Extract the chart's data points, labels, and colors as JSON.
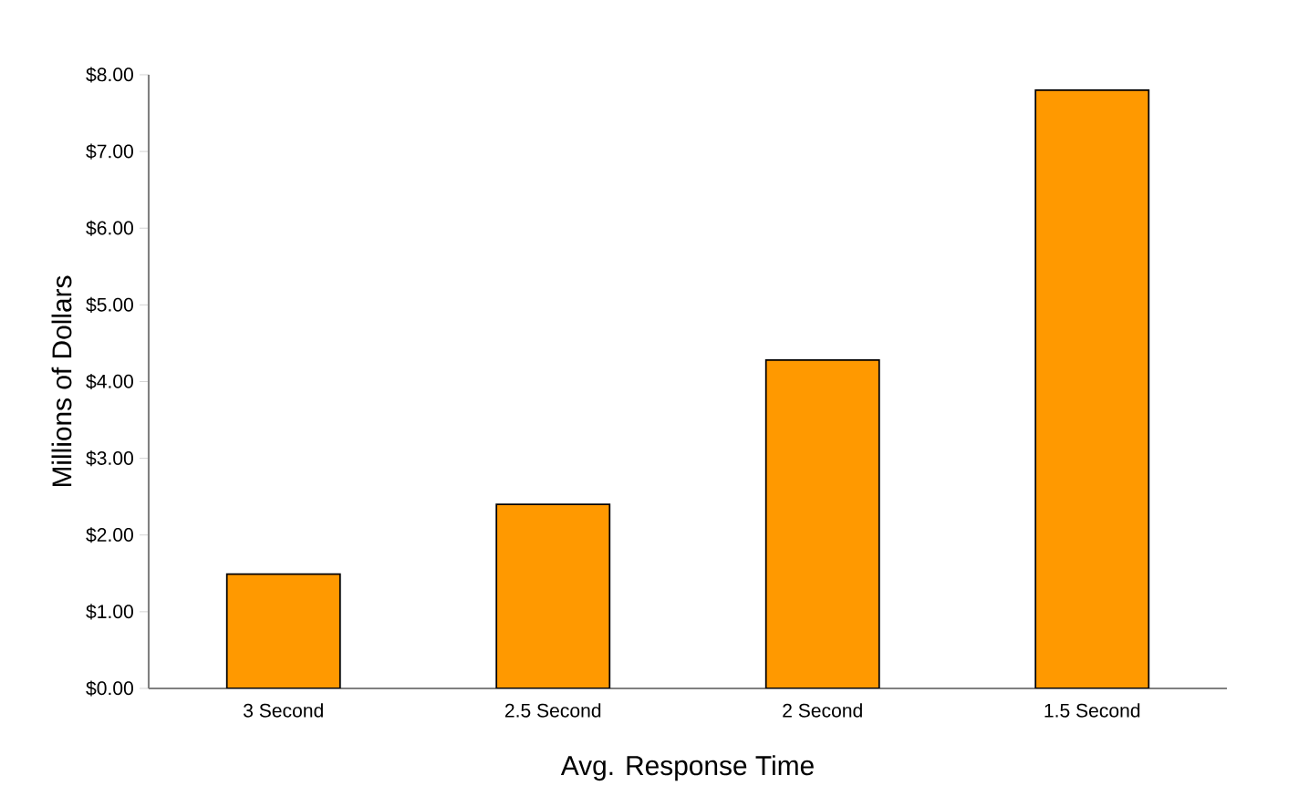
{
  "chart_data": {
    "type": "bar",
    "xlabel": "Avg. Response Time",
    "ylabel": "Millions of Dollars",
    "categories": [
      "3 Second",
      "2.5 Second",
      "2 Second",
      "1.5 Second"
    ],
    "values": [
      1.49,
      2.4,
      4.28,
      7.8
    ],
    "color": "#ff9900",
    "ylim": [
      0,
      8
    ],
    "yticks": [
      {
        "value": 0,
        "label": "$0.00"
      },
      {
        "value": 1,
        "label": "$1.00"
      },
      {
        "value": 2,
        "label": "$2.00"
      },
      {
        "value": 3,
        "label": "$3.00"
      },
      {
        "value": 4,
        "label": "$4.00"
      },
      {
        "value": 5,
        "label": "$5.00"
      },
      {
        "value": 6,
        "label": "$6.00"
      },
      {
        "value": 7,
        "label": "$7.00"
      },
      {
        "value": 8,
        "label": "$8.00"
      }
    ],
    "grid": false
  }
}
